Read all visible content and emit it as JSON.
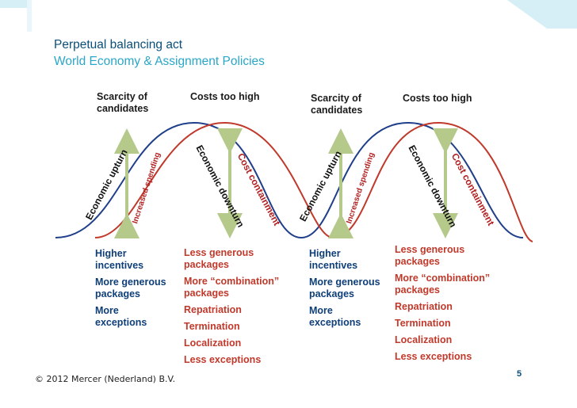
{
  "header": {
    "title": "Perpetual balancing act",
    "subtitle": "World Economy & Assignment Policies"
  },
  "phases": [
    {
      "top_label": "Scarcity of\ncandidates",
      "up_label": "Economic upturn",
      "arrow_label": "Increased spending",
      "items": [
        "Higher\nincentives",
        "More generous\npackages",
        "More\nexceptions"
      ]
    },
    {
      "top_label": "Costs too high",
      "down_label": "Economic downturn",
      "arrow_label": "Cost containment",
      "items": [
        "Less generous\npackages",
        "More “combination”\npackages",
        "Repatriation",
        "Termination",
        "Localization",
        "Less exceptions"
      ]
    },
    {
      "top_label": "Scarcity of\ncandidates",
      "up_label": "Economic upturn",
      "arrow_label": "Increased spending",
      "items": [
        "Higher\nincentives",
        "More generous\npackages",
        "More\nexceptions"
      ]
    },
    {
      "top_label": "Costs too high",
      "down_label": "Economic downturn",
      "arrow_label": "Cost containment",
      "items": [
        "Less generous\npackages",
        "More “combination”\npackages",
        "Repatriation",
        "Termination",
        "Localization",
        "Less exceptions"
      ]
    }
  ],
  "footer": {
    "copyright_symbol": "©",
    "copyright": "2012 Mercer (Nederland) B.V.",
    "page": "5"
  },
  "colors": {
    "economy_curve": "#1f3f8a",
    "policy_curve": "#c0392b",
    "arrow": "#b5c98a",
    "title": "#0a4f7a",
    "subtitle": "#2aa6c8",
    "corner": "#d6eef6"
  }
}
